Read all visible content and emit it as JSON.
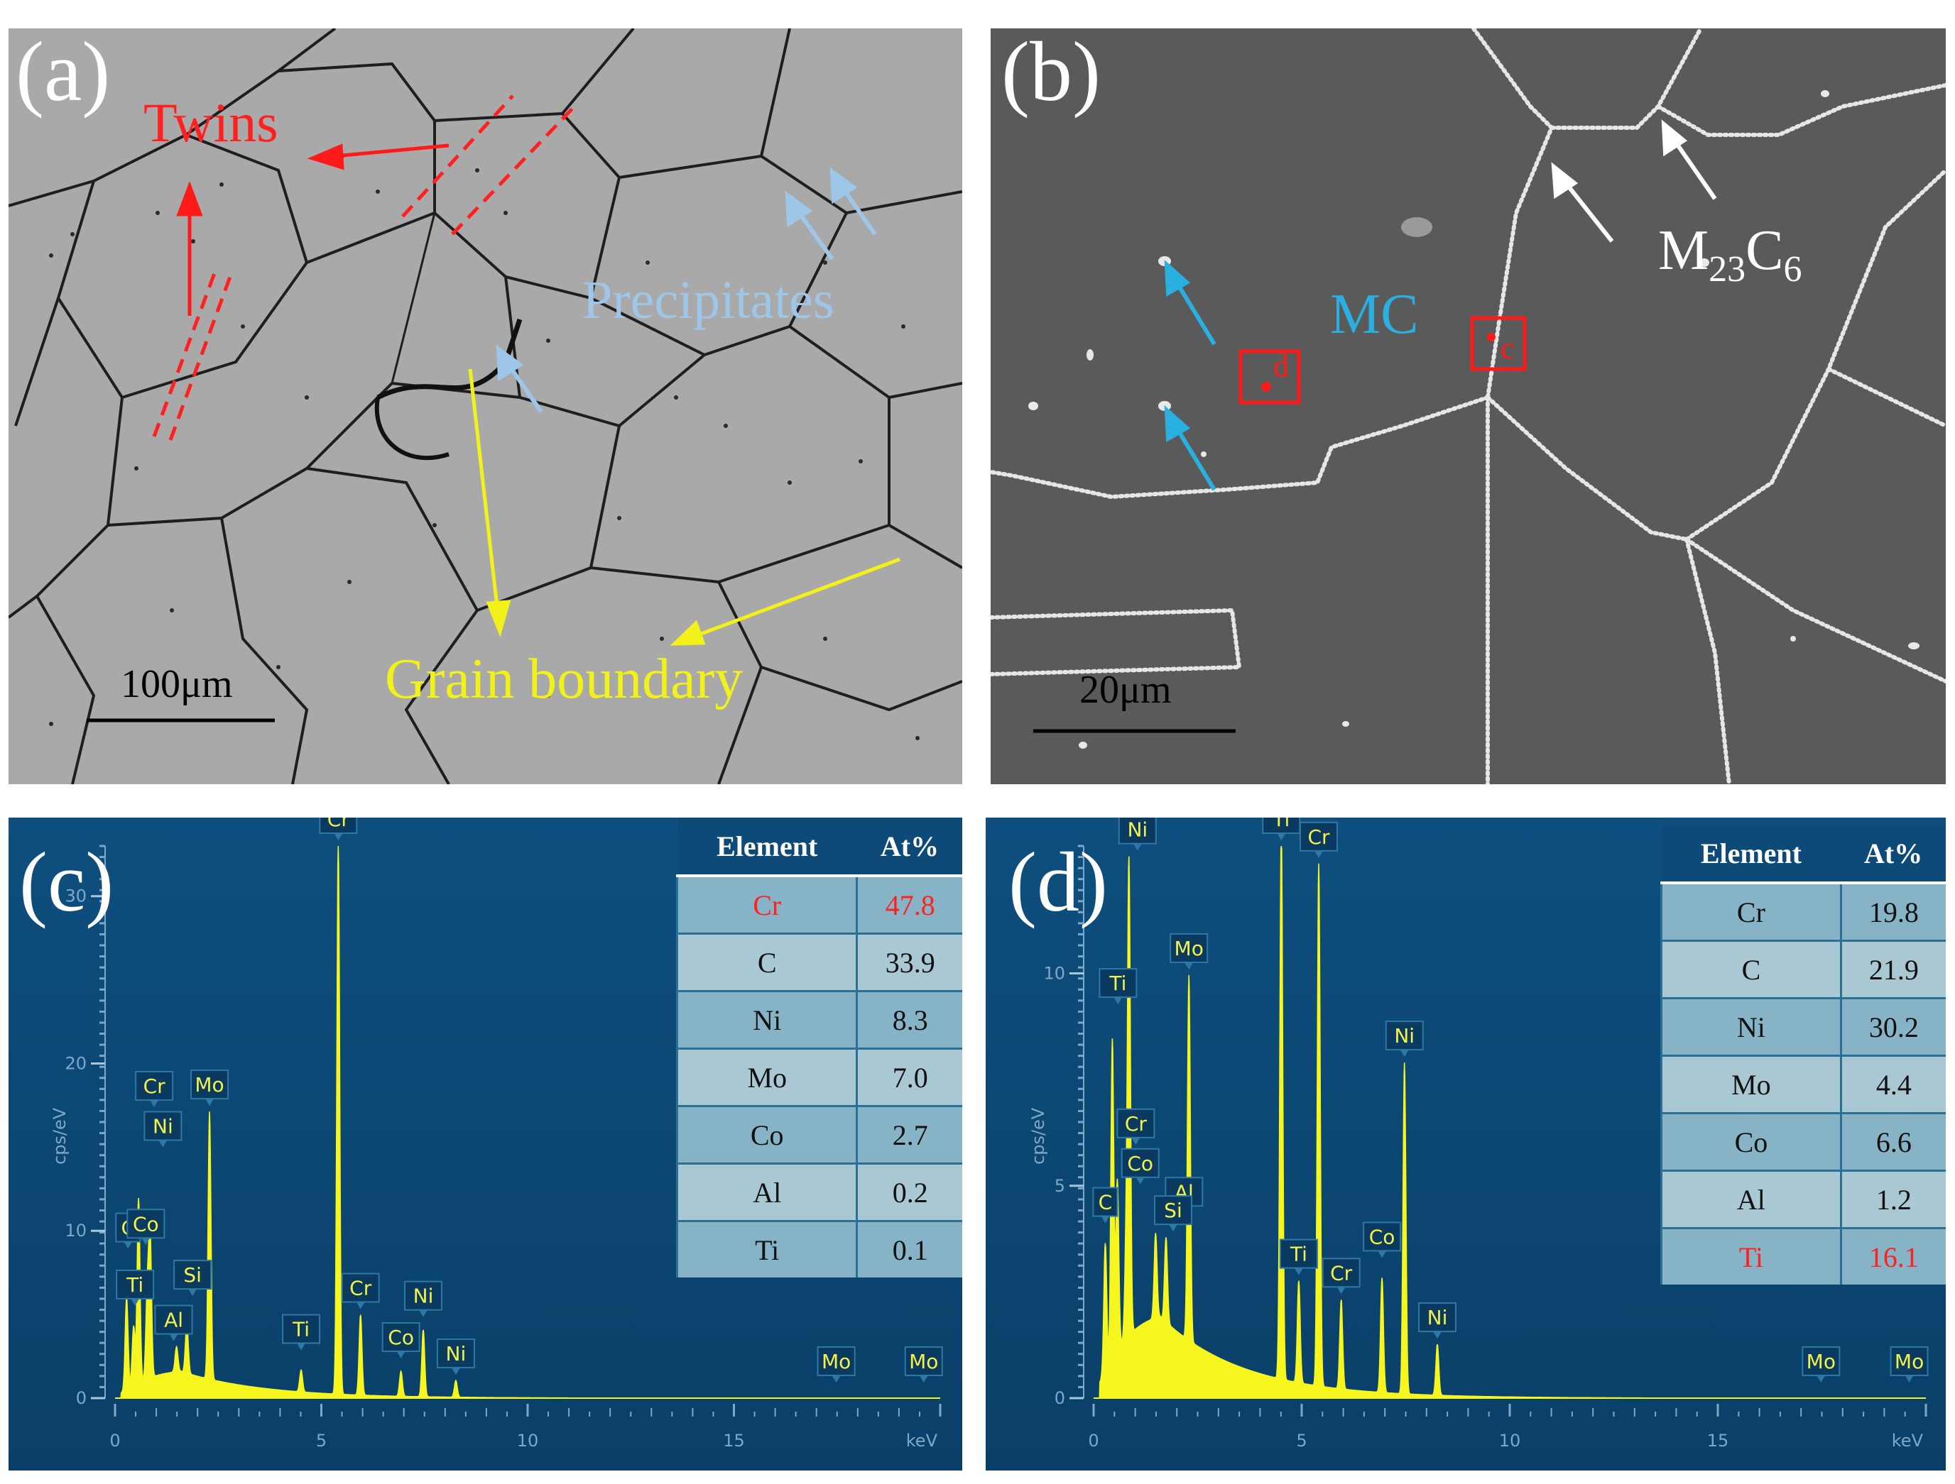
{
  "panels": {
    "a": {
      "label": "(a)",
      "annotations": {
        "twins": "Twins",
        "precipitates": "Precipitates",
        "grain_boundary": "Grain boundary"
      },
      "scale_bar": "100μm"
    },
    "b": {
      "label": "(b)",
      "annotations": {
        "mc": "MC",
        "m23c6_main": "M",
        "m23c6_sub1": "23",
        "m23c6_c": "C",
        "m23c6_sub2": "6",
        "box_c": "c",
        "box_d": "d"
      },
      "scale_bar": "20μm"
    },
    "c": {
      "label": "(c)",
      "table": {
        "headers": [
          "Element",
          "At%"
        ],
        "rows": [
          [
            "Cr",
            "47.8"
          ],
          [
            "C",
            "33.9"
          ],
          [
            "Ni",
            "8.3"
          ],
          [
            "Mo",
            "7.0"
          ],
          [
            "Co",
            "2.7"
          ],
          [
            "Al",
            "0.2"
          ],
          [
            "Ti",
            "0.1"
          ]
        ]
      }
    },
    "d": {
      "label": "(d)",
      "table": {
        "headers": [
          "Element",
          "At%"
        ],
        "rows": [
          [
            "Cr",
            "19.8"
          ],
          [
            "C",
            "21.9"
          ],
          [
            "Ni",
            "30.2"
          ],
          [
            "Mo",
            "4.4"
          ],
          [
            "Co",
            "6.6"
          ],
          [
            "Al",
            "1.2"
          ],
          [
            "Ti",
            "16.1"
          ]
        ]
      }
    }
  },
  "chart_data": [
    {
      "type": "line",
      "panel": "c",
      "ylabel": "cps/eV",
      "xunit": "keV",
      "xlim": [
        0,
        20
      ],
      "ylim": [
        0,
        33
      ],
      "x_ticks": [
        "0",
        "5",
        "10",
        "15"
      ],
      "y_ticks": [
        "0",
        "10",
        "20",
        "30"
      ],
      "peaks": [
        {
          "el": "C",
          "x": 0.28,
          "y": 5.5
        },
        {
          "el": "Ti",
          "x": 0.45,
          "y": 3.5
        },
        {
          "el": "Cr",
          "x": 0.57,
          "y": 11
        },
        {
          "el": "Ni",
          "x": 0.85,
          "y": 8.5
        },
        {
          "el": "Co",
          "x": 0.78,
          "y": 5.0
        },
        {
          "el": "Al",
          "x": 1.49,
          "y": 1.5
        },
        {
          "el": "Si",
          "x": 1.74,
          "y": 3.0
        },
        {
          "el": "Mo",
          "x": 2.29,
          "y": 16
        },
        {
          "el": "Ti",
          "x": 4.51,
          "y": 1.3
        },
        {
          "el": "Cr",
          "x": 5.41,
          "y": 33
        },
        {
          "el": "Cr",
          "x": 5.95,
          "y": 4.8
        },
        {
          "el": "Co",
          "x": 6.93,
          "y": 1.5
        },
        {
          "el": "Ni",
          "x": 7.47,
          "y": 4.0
        },
        {
          "el": "Ni",
          "x": 8.26,
          "y": 1.0
        },
        {
          "el": "Mo",
          "x": 17.48,
          "y": 0
        },
        {
          "el": "Mo",
          "x": 19.6,
          "y": 0
        }
      ]
    },
    {
      "type": "line",
      "panel": "d",
      "ylabel": "cps/eV",
      "xunit": "keV",
      "xlim": [
        0,
        20
      ],
      "ylim": [
        0,
        13
      ],
      "x_ticks": [
        "0",
        "5",
        "10",
        "15"
      ],
      "y_ticks": [
        "0",
        "5",
        "10"
      ],
      "peaks": [
        {
          "el": "C",
          "x": 0.28,
          "y": 3.0
        },
        {
          "el": "Ti",
          "x": 0.45,
          "y": 7.5
        },
        {
          "el": "Cr",
          "x": 0.57,
          "y": 4.0
        },
        {
          "el": "Co",
          "x": 0.78,
          "y": 2.0
        },
        {
          "el": "Ni",
          "x": 0.85,
          "y": 11.0
        },
        {
          "el": "Al",
          "x": 1.49,
          "y": 2.0
        },
        {
          "el": "Si",
          "x": 1.74,
          "y": 2.0
        },
        {
          "el": "Mo",
          "x": 2.29,
          "y": 8.6
        },
        {
          "el": "Ti",
          "x": 4.51,
          "y": 13.0
        },
        {
          "el": "Ti",
          "x": 4.93,
          "y": 2.4
        },
        {
          "el": "Cr",
          "x": 5.41,
          "y": 12.3
        },
        {
          "el": "Cr",
          "x": 5.95,
          "y": 2.1
        },
        {
          "el": "Co",
          "x": 6.93,
          "y": 2.7
        },
        {
          "el": "Ni",
          "x": 7.47,
          "y": 7.8
        },
        {
          "el": "Ni",
          "x": 8.26,
          "y": 1.2
        },
        {
          "el": "Mo",
          "x": 17.48,
          "y": 0
        },
        {
          "el": "Mo",
          "x": 19.6,
          "y": 0
        }
      ]
    }
  ]
}
